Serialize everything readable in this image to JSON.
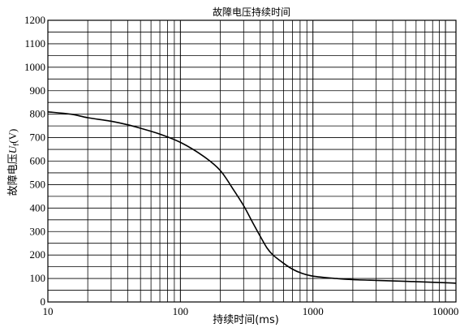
{
  "chart_data": {
    "type": "line",
    "title": "故障电压持续时间",
    "xlabel": "持续时间(ms)",
    "ylabel": "故障电压Uf(V)",
    "ylabel_main": "故障电压",
    "ylabel_sub": "f",
    "ylabel_unit": "(V)",
    "ylabel_letter": "U",
    "x_scale": "log",
    "xlim": [
      10,
      12000
    ],
    "ylim": [
      0,
      1200
    ],
    "x_ticks": [
      10,
      100,
      1000,
      10000
    ],
    "x_tick_labels": [
      "10",
      "100",
      "1000",
      "10000"
    ],
    "y_ticks": [
      0,
      100,
      200,
      300,
      400,
      500,
      600,
      700,
      800,
      900,
      1000,
      1100,
      1200
    ],
    "y_tick_labels": [
      "0",
      "100",
      "200",
      "300",
      "400",
      "500",
      "600",
      "700",
      "800",
      "900",
      "1000",
      "1100",
      "1200"
    ],
    "y_grid_step": 50,
    "grid": true,
    "series": [
      {
        "x": [
          10,
          15,
          20,
          30,
          40,
          50,
          70,
          100,
          150,
          200,
          250,
          300,
          350,
          400,
          450,
          500,
          600,
          700,
          800,
          1000,
          1500,
          2000,
          3000,
          5000,
          10000,
          12000
        ],
        "y": [
          810,
          800,
          785,
          770,
          755,
          740,
          715,
          680,
          620,
          560,
          480,
          410,
          340,
          280,
          230,
          200,
          165,
          140,
          125,
          110,
          100,
          95,
          92,
          88,
          82,
          80
        ]
      }
    ]
  }
}
